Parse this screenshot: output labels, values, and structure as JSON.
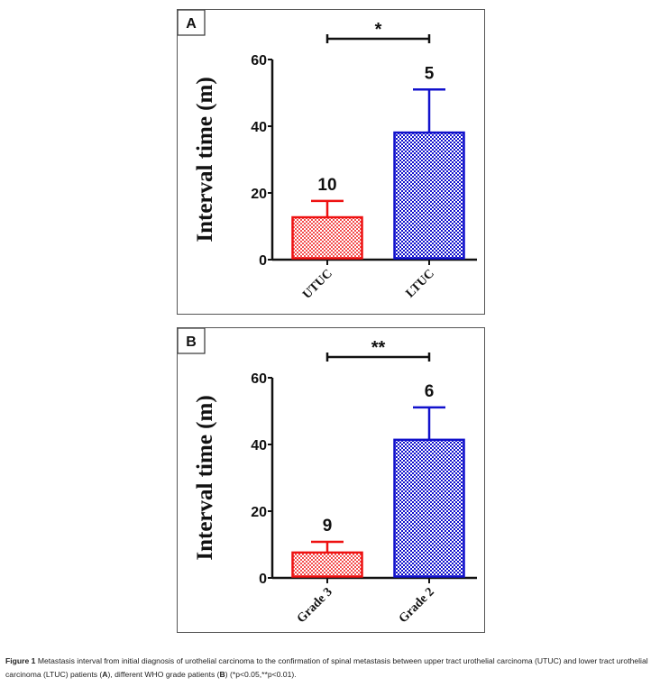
{
  "chart_data": [
    {
      "type": "bar",
      "panel_label": "A",
      "title": "",
      "xlabel": "",
      "ylabel": "Interval time  (m)",
      "ylim": [
        0,
        60
      ],
      "yticks": [
        0,
        20,
        40,
        60
      ],
      "categories": [
        "UTUC",
        "LTUC"
      ],
      "values": [
        12.7,
        38.1
      ],
      "error_upper": [
        17.6,
        51.0
      ],
      "n_labels": [
        "10",
        "5"
      ],
      "colors": [
        "#ee1111",
        "#1111cc"
      ],
      "significance": "*",
      "grid": false,
      "legend": "none"
    },
    {
      "type": "bar",
      "panel_label": "B",
      "title": "",
      "xlabel": "",
      "ylabel": "Interval time  (m)",
      "ylim": [
        0,
        60
      ],
      "yticks": [
        0,
        20,
        40,
        60
      ],
      "categories": [
        "Grade 3",
        "Grade 2"
      ],
      "values": [
        7.6,
        41.4
      ],
      "error_upper": [
        10.8,
        51.1
      ],
      "n_labels": [
        "9",
        "6"
      ],
      "colors": [
        "#ee1111",
        "#1111cc"
      ],
      "significance": "**",
      "grid": false,
      "legend": "none"
    }
  ],
  "caption": {
    "figure_label": "Figure 1",
    "text_1": " Metastasis interval from initial diagnosis of urothelial carcinoma to the confirmation of spinal metastasis between upper tract urothelial carcinoma (UTUC) and lower tract urothelial carcinoma (LTUC) patients (",
    "ref_a": "A",
    "text_2": "), different WHO grade patients (",
    "ref_b": "B",
    "text_3": ") (*p<0.05,**p<0.01)."
  }
}
